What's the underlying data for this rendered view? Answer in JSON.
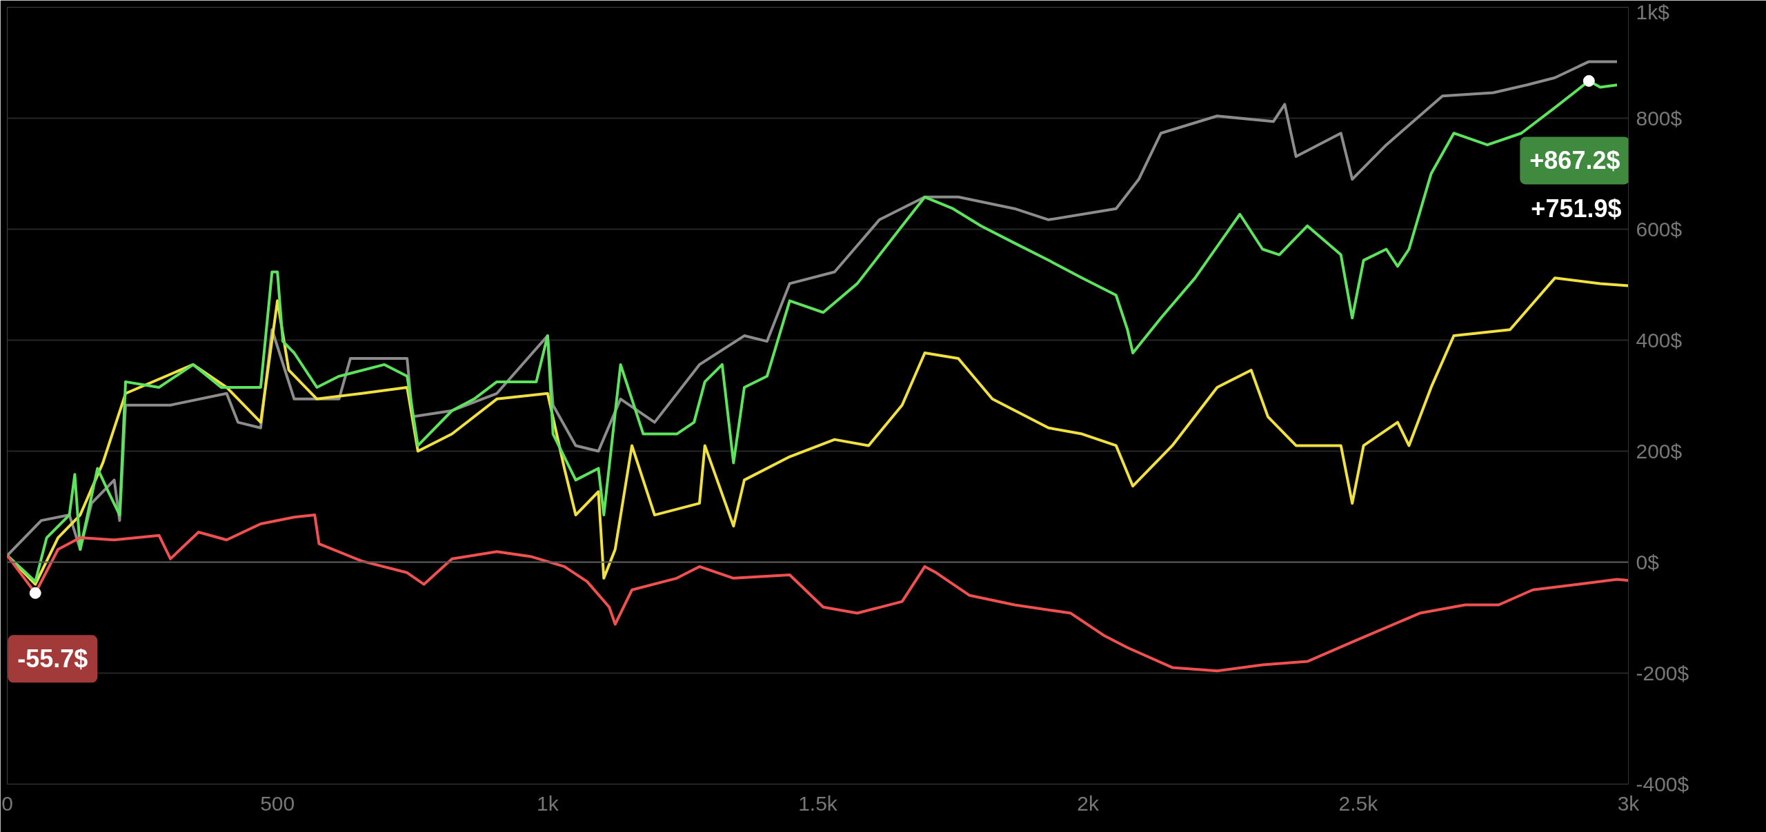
{
  "chart_data": {
    "type": "line",
    "xlim": [
      0,
      3000
    ],
    "ylim": [
      -400,
      1000
    ],
    "xticks": [
      0,
      500,
      {
        "value": 1000,
        "label": "1k"
      },
      {
        "value": 1500,
        "label": "1.5k"
      },
      {
        "value": 2000,
        "label": "2k"
      },
      {
        "value": 2500,
        "label": "2.5k"
      },
      {
        "value": 3000,
        "label": "3k"
      }
    ],
    "yticks": [
      {
        "value": -400,
        "label": "-400$"
      },
      {
        "value": -200,
        "label": "-200$"
      },
      {
        "value": 0,
        "label": "0$"
      },
      {
        "value": 200,
        "label": "200$"
      },
      {
        "value": 400,
        "label": "400$"
      },
      {
        "value": 600,
        "label": "600$"
      },
      {
        "value": 800,
        "label": "800$"
      },
      {
        "value": 1000,
        "label": "1k$"
      }
    ],
    "grid": "y",
    "marker": "none",
    "line_style": "solid",
    "ref_lines": [
      {
        "axis": "y",
        "value": 0,
        "color": "#5a5a5a"
      }
    ],
    "series": [
      {
        "color": "#8c8c8c",
        "x": [
          0,
          63,
          115,
          135,
          156,
          198,
          208,
          219,
          302,
          406,
          427,
          469,
          490,
          531,
          614,
          635,
          740,
          750,
          823,
          906,
          1000,
          1010,
          1052,
          1094,
          1135,
          1198,
          1281,
          1364,
          1406,
          1448,
          1531,
          1614,
          1698,
          1760,
          1864,
          1927,
          2052,
          2094,
          2135,
          2239,
          2343,
          2364,
          2385,
          2468,
          2489,
          2552,
          2656,
          2750,
          2812,
          2864,
          2927,
          2979
        ],
        "values": [
          12,
          75,
          85,
          23,
          106,
          148,
          75,
          283,
          283,
          304,
          252,
          242,
          419,
          294,
          294,
          367,
          367,
          262,
          273,
          304,
          408,
          283,
          210,
          200,
          294,
          252,
          356,
          408,
          398,
          502,
          523,
          617,
          658,
          658,
          637,
          617,
          637,
          690,
          773,
          804,
          794,
          825,
          731,
          773,
          690,
          752,
          840,
          846,
          860,
          873,
          902,
          902
        ]
      },
      {
        "color": "#f0e040",
        "x": [
          0,
          52,
          94,
          135,
          177,
          219,
          344,
          406,
          469,
          500,
          521,
          573,
          656,
          740,
          760,
          823,
          906,
          1000,
          1031,
          1052,
          1094,
          1104,
          1125,
          1156,
          1198,
          1281,
          1291,
          1344,
          1364,
          1448,
          1531,
          1594,
          1656,
          1698,
          1760,
          1823,
          1927,
          1989,
          2052,
          2083,
          2156,
          2239,
          2302,
          2333,
          2385,
          2468,
          2489,
          2510,
          2573,
          2594,
          2635,
          2677,
          2781,
          2864,
          2948,
          3000
        ],
        "values": [
          12,
          -40,
          44,
          85,
          179,
          304,
          356,
          315,
          252,
          471,
          346,
          294,
          304,
          315,
          200,
          231,
          294,
          304,
          169,
          85,
          127,
          -29,
          23,
          210,
          85,
          106,
          210,
          65,
          148,
          190,
          221,
          210,
          283,
          377,
          367,
          294,
          242,
          231,
          210,
          137,
          210,
          315,
          346,
          262,
          210,
          210,
          106,
          210,
          252,
          210,
          315,
          408,
          419,
          512,
          502,
          498
        ]
      },
      {
        "color": "#5de35d",
        "x": [
          0,
          52,
          73,
          115,
          125,
          135,
          167,
          187,
          208,
          219,
          281,
          344,
          396,
          469,
          490,
          500,
          510,
          531,
          573,
          614,
          698,
          740,
          760,
          823,
          864,
          906,
          979,
          1000,
          1010,
          1052,
          1094,
          1104,
          1135,
          1177,
          1239,
          1271,
          1291,
          1323,
          1344,
          1364,
          1406,
          1448,
          1510,
          1573,
          1656,
          1698,
          1750,
          1802,
          1864,
          1927,
          1989,
          2052,
          2073,
          2083,
          2135,
          2198,
          2281,
          2323,
          2354,
          2406,
          2468,
          2489,
          2510,
          2552,
          2573,
          2594,
          2635,
          2677,
          2739,
          2802,
          2864,
          2927,
          2948,
          2979
        ],
        "values": [
          12,
          -35,
          44,
          85,
          158,
          23,
          169,
          127,
          85,
          325,
          315,
          356,
          315,
          315,
          523,
          523,
          398,
          377,
          315,
          335,
          356,
          335,
          210,
          273,
          294,
          325,
          325,
          408,
          231,
          148,
          169,
          85,
          356,
          231,
          231,
          252,
          325,
          356,
          179,
          315,
          335,
          471,
          450,
          502,
          606,
          658,
          637,
          606,
          575,
          544,
          512,
          481,
          419,
          377,
          440,
          512,
          627,
          564,
          554,
          606,
          554,
          440,
          544,
          564,
          533,
          564,
          700,
          773,
          752,
          773,
          819,
          867.2,
          856,
          860
        ]
      },
      {
        "color": "#f05050",
        "x": [
          0,
          52,
          94,
          135,
          198,
          281,
          302,
          354,
          406,
          469,
          531,
          569,
          577,
          656,
          740,
          771,
          823,
          906,
          969,
          1031,
          1073,
          1114,
          1125,
          1156,
          1239,
          1281,
          1344,
          1448,
          1510,
          1573,
          1656,
          1698,
          1719,
          1781,
          1864,
          1968,
          2031,
          2073,
          2156,
          2239,
          2323,
          2406,
          2489,
          2614,
          2698,
          2760,
          2823,
          2906,
          2979,
          3000
        ],
        "values": [
          12,
          -55.7,
          23,
          44,
          40,
          48,
          6,
          54,
          40,
          69,
          81,
          85,
          33,
          2,
          -19,
          -40,
          6,
          19,
          10,
          -8,
          -35,
          -81,
          -112,
          -50,
          -29,
          -8,
          -29,
          -23,
          -81,
          -92,
          -71,
          -8,
          -19,
          -60,
          -77,
          -92,
          -133,
          -154,
          -190,
          -196,
          -185,
          -179,
          -144,
          -92,
          -77,
          -77,
          -50,
          -40,
          -31,
          -33
        ]
      }
    ],
    "annotations": [
      {
        "text": "-55.7$",
        "x": 52,
        "y": -55.7
      },
      {
        "text": "+867.2$",
        "x": 2927,
        "y": 867.2
      },
      "+751.9$"
    ]
  }
}
